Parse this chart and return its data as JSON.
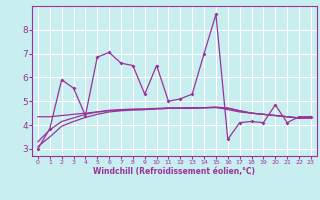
{
  "background_color": "#c8eef0",
  "grid_color": "#ffffff",
  "line_color": "#993399",
  "xlabel": "Windchill (Refroidissement éolien,°C)",
  "xlim": [
    -0.5,
    23.5
  ],
  "ylim": [
    2.7,
    9.0
  ],
  "yticks": [
    3,
    4,
    5,
    6,
    7,
    8
  ],
  "xticks": [
    0,
    1,
    2,
    3,
    4,
    5,
    6,
    7,
    8,
    9,
    10,
    11,
    12,
    13,
    14,
    15,
    16,
    17,
    18,
    19,
    20,
    21,
    22,
    23
  ],
  "series1_x": [
    0,
    1,
    2,
    3,
    4,
    5,
    6,
    7,
    8,
    9,
    10,
    11,
    12,
    13,
    14,
    15,
    16,
    17,
    18,
    19,
    20,
    21,
    22,
    23
  ],
  "series1_y": [
    3.0,
    3.85,
    5.9,
    5.55,
    4.4,
    6.85,
    7.05,
    6.6,
    6.5,
    5.3,
    6.5,
    5.0,
    5.1,
    5.3,
    7.0,
    8.65,
    3.4,
    4.1,
    4.15,
    4.1,
    4.85,
    4.1,
    4.35,
    4.35
  ],
  "series2_x": [
    0,
    1,
    2,
    3,
    4,
    5,
    6,
    7,
    8,
    9,
    10,
    11,
    12,
    13,
    14,
    15,
    16,
    17,
    18,
    19,
    20,
    21,
    22,
    23
  ],
  "series2_y": [
    4.35,
    4.35,
    4.4,
    4.45,
    4.5,
    4.55,
    4.6,
    4.62,
    4.65,
    4.65,
    4.68,
    4.7,
    4.7,
    4.7,
    4.73,
    4.75,
    4.65,
    4.55,
    4.5,
    4.45,
    4.4,
    4.35,
    4.3,
    4.3
  ],
  "series3_x": [
    0,
    1,
    2,
    3,
    4,
    5,
    6,
    7,
    8,
    9,
    10,
    11,
    12,
    13,
    14,
    15,
    16,
    17,
    18,
    19,
    20,
    21,
    22,
    23
  ],
  "series3_y": [
    3.3,
    3.8,
    4.15,
    4.3,
    4.45,
    4.55,
    4.62,
    4.65,
    4.67,
    4.68,
    4.7,
    4.72,
    4.72,
    4.73,
    4.73,
    4.75,
    4.72,
    4.6,
    4.5,
    4.45,
    4.4,
    4.35,
    4.28,
    4.3
  ],
  "series4_x": [
    0,
    1,
    2,
    3,
    4,
    5,
    6,
    7,
    8,
    9,
    10,
    11,
    12,
    13,
    14,
    15,
    16,
    17,
    18,
    19,
    20,
    21,
    22,
    23
  ],
  "series4_y": [
    3.1,
    3.5,
    3.95,
    4.15,
    4.32,
    4.45,
    4.55,
    4.6,
    4.63,
    4.65,
    4.68,
    4.7,
    4.71,
    4.72,
    4.72,
    4.73,
    4.7,
    4.6,
    4.5,
    4.45,
    4.4,
    4.35,
    4.3,
    4.32
  ]
}
